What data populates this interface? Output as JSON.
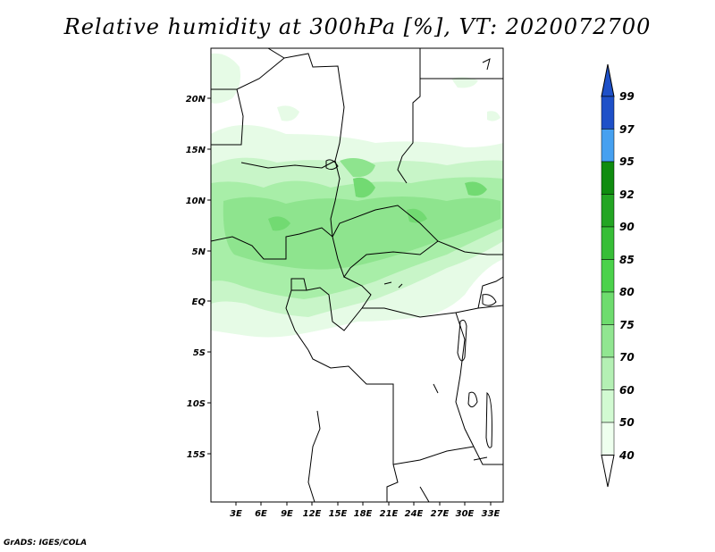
{
  "title": "Relative humidity at 300hPa [%], VT: 2020072700",
  "credit": "GrADS: IGES/COLA",
  "map": {
    "lon_range": [
      0,
      34.5
    ],
    "lat_range": [
      -20,
      25
    ],
    "lon_ticks": [
      "3E",
      "6E",
      "9E",
      "12E",
      "15E",
      "18E",
      "21E",
      "24E",
      "27E",
      "30E",
      "33E"
    ],
    "lat_ticks": [
      "20N",
      "15N",
      "10N",
      "5N",
      "EQ",
      "5S",
      "10S",
      "15S"
    ]
  },
  "colorbar": {
    "labels": [
      "99",
      "97",
      "95",
      "92",
      "90",
      "85",
      "80",
      "75",
      "70",
      "60",
      "50",
      "40"
    ],
    "colors": [
      "#1e50c8",
      "#2878dc",
      "#46a0f0",
      "#0f8c0f",
      "#23a523",
      "#37be37",
      "#4bd24b",
      "#6edc6e",
      "#91e691",
      "#b4f0b4",
      "#d2fad2",
      "#eeffee"
    ]
  },
  "colors": {
    "land_outline": "#000000",
    "frame": "#000000"
  }
}
